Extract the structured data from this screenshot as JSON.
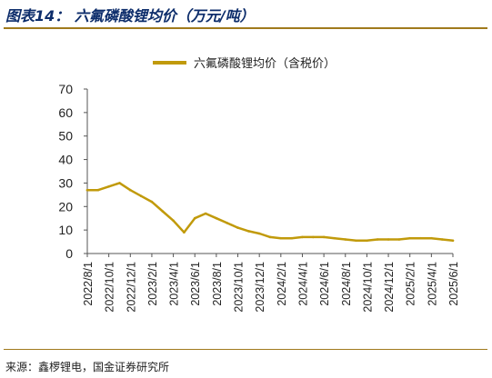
{
  "figure": {
    "title": "图表14： 六氟磷酸锂均价（万元/吨）",
    "source": "来源：鑫椤锂电，国金证券研究所"
  },
  "chart_data": {
    "type": "line",
    "series": [
      {
        "name": "六氟磷酸锂均价（含税价）",
        "color": "#c19a0b",
        "x": [
          "2022-08",
          "2022-09",
          "2022-10",
          "2022-11",
          "2022-12",
          "2023-01",
          "2023-02",
          "2023-03",
          "2023-04",
          "2023-05",
          "2023-06",
          "2023-07",
          "2023-08",
          "2023-09",
          "2023-10",
          "2023-11",
          "2023-12",
          "2024-01",
          "2024-02",
          "2024-03",
          "2024-04",
          "2024-05",
          "2024-06",
          "2024-07",
          "2024-08",
          "2024-09",
          "2024-10",
          "2024-11",
          "2024-12",
          "2025-01",
          "2025-02",
          "2025-03",
          "2025-04",
          "2025-05",
          "2025-06"
        ],
        "values": [
          27,
          27,
          28.5,
          30,
          27,
          24.5,
          22,
          18,
          14,
          9,
          15,
          17,
          15,
          13,
          11,
          9.5,
          8.5,
          7,
          6.5,
          6.5,
          7,
          7,
          7,
          6.5,
          6,
          5.5,
          5.5,
          6,
          6,
          6,
          6.5,
          6.5,
          6.5,
          6,
          5.5
        ]
      }
    ],
    "x_tick_labels": [
      "2022/8/1",
      "2022/10/1",
      "2022/12/1",
      "2023/2/1",
      "2023/4/1",
      "2023/6/1",
      "2023/8/1",
      "2023/10/1",
      "2023/12/1",
      "2024/2/1",
      "2024/4/1",
      "2024/6/1",
      "2024/8/1",
      "2024/10/1",
      "2024/12/1",
      "2025/2/1",
      "2025/4/1",
      "2025/6/1"
    ],
    "y_ticks": [
      0,
      10,
      20,
      30,
      40,
      50,
      60,
      70
    ],
    "ylim": [
      0,
      70
    ],
    "grid": false,
    "legend_position": "top-center"
  }
}
